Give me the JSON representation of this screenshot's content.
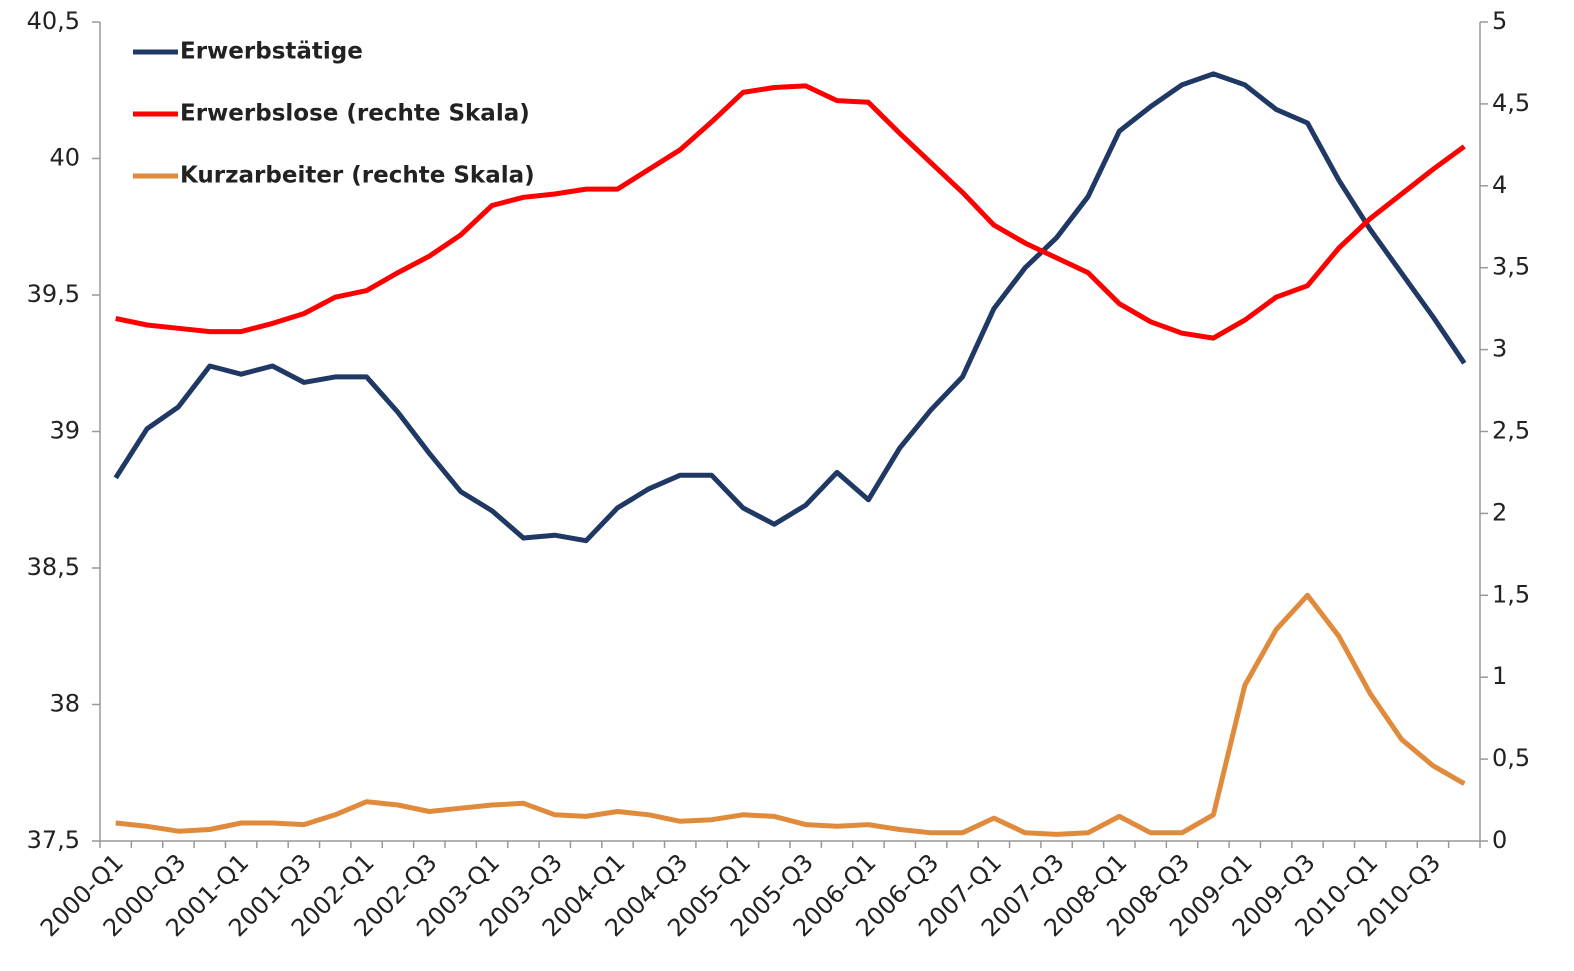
{
  "chart_data": {
    "type": "line",
    "categories": [
      "2000-Q1",
      null,
      "2000-Q3",
      null,
      "2001-Q1",
      null,
      "2001-Q3",
      null,
      "2002-Q1",
      null,
      "2002-Q3",
      null,
      "2003-Q1",
      null,
      "2003-Q3",
      null,
      "2004-Q1",
      null,
      "2004-Q3",
      null,
      "2005-Q1",
      null,
      "2005-Q3",
      null,
      "2006-Q1",
      null,
      "2006-Q3",
      null,
      "2007-Q1",
      null,
      "2007-Q3",
      null,
      "2008-Q1",
      null,
      "2008-Q3",
      null,
      "2009-Q1",
      null,
      "2009-Q3",
      null,
      "2010-Q1",
      null,
      "2010-Q3",
      null
    ],
    "series": [
      {
        "name": "Erwerbstätige",
        "color": "#1f3864",
        "axis": "y",
        "values": [
          38.83,
          39.01,
          39.09,
          39.24,
          39.21,
          39.24,
          39.18,
          39.2,
          39.2,
          39.07,
          38.92,
          38.78,
          38.71,
          38.61,
          38.62,
          38.6,
          38.72,
          38.79,
          38.84,
          38.84,
          38.72,
          38.66,
          38.73,
          38.85,
          38.75,
          38.94,
          39.08,
          39.2,
          39.45,
          39.6,
          39.71,
          39.86,
          40.1,
          40.19,
          40.27,
          40.31,
          40.27,
          40.18,
          40.13,
          39.92,
          39.74,
          39.58,
          39.42,
          39.25
        ]
      },
      {
        "name": "Erwerbslose (rechte Skala)",
        "color": "#ff0000",
        "axis": "y2",
        "values": [
          3.19,
          3.15,
          3.13,
          3.11,
          3.11,
          3.16,
          3.22,
          3.32,
          3.36,
          3.47,
          3.57,
          3.7,
          3.88,
          3.93,
          3.95,
          3.98,
          3.98,
          4.1,
          4.22,
          4.39,
          4.57,
          4.6,
          4.61,
          4.52,
          4.51,
          4.32,
          4.14,
          3.96,
          3.76,
          3.65,
          3.56,
          3.47,
          3.28,
          3.17,
          3.1,
          3.07,
          3.18,
          3.32,
          3.39,
          3.62,
          3.8,
          3.95,
          4.1,
          4.24
        ]
      },
      {
        "name": "Kurzarbeiter (rechte Skala)",
        "color": "#e08a3c",
        "axis": "y2",
        "values": [
          0.11,
          0.09,
          0.06,
          0.07,
          0.11,
          0.11,
          0.1,
          0.16,
          0.24,
          0.22,
          0.18,
          0.2,
          0.22,
          0.23,
          0.16,
          0.15,
          0.18,
          0.16,
          0.12,
          0.13,
          0.16,
          0.15,
          0.1,
          0.09,
          0.1,
          0.07,
          0.05,
          0.05,
          0.14,
          0.05,
          0.04,
          0.05,
          0.15,
          0.05,
          0.05,
          0.16,
          0.95,
          1.29,
          1.5,
          1.25,
          0.9,
          0.62,
          0.46,
          0.35
        ]
      }
    ],
    "ylim": [
      37.5,
      40.5
    ],
    "yticks": [
      {
        "value": 37.5,
        "label": "37,5"
      },
      38,
      {
        "value": 38.5,
        "label": "38,5"
      },
      39,
      {
        "value": 39.5,
        "label": "39,5"
      },
      40,
      {
        "value": 40.5,
        "label": "40,5"
      }
    ],
    "y2lim": [
      0,
      5
    ],
    "y2ticks": [
      0,
      {
        "value": 0.5,
        "label": "0,5"
      },
      1,
      {
        "value": 1.5,
        "label": "1,5"
      },
      2,
      {
        "value": 2.5,
        "label": "2,5"
      },
      3,
      {
        "value": 3.5,
        "label": "3,5"
      },
      4,
      {
        "value": 4.5,
        "label": "4,5"
      },
      5
    ],
    "legend": "upper-left",
    "grid": false
  }
}
